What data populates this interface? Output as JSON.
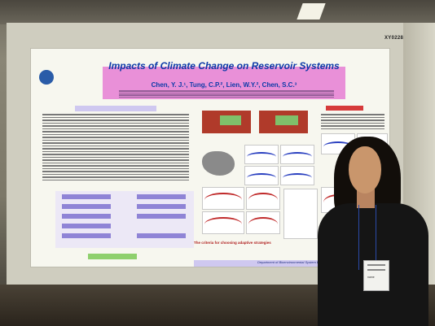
{
  "scene": {
    "board_label": "XY0228",
    "poster": {
      "title": "Impacts of Climate Change on Reservoir Systems",
      "authors": "Chen, Y. J.¹, Tung, C.P.², Lien, W.Y.², Chen, S.C.³",
      "section_abstract": "Abstract",
      "criteria_heading": "The criteria for choosing adaptive strategies",
      "footer_caption": "Department of Bioenvironmental System Engineering",
      "flow_footer": "Flowchart of study"
    },
    "badge_name": "name"
  }
}
